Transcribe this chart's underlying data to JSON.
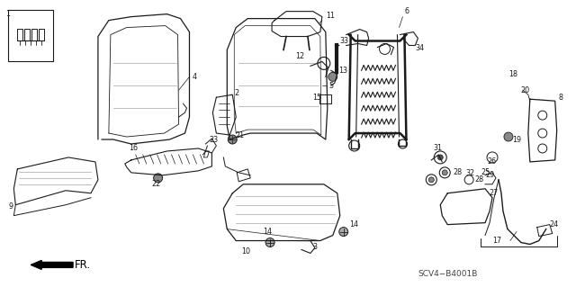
{
  "bg_color": "#ffffff",
  "line_color": "#1a1a1a",
  "text_color": "#1a1a1a",
  "fig_width": 6.4,
  "fig_height": 3.19,
  "diagram_code": "SCV4−B4001B",
  "fr_label": "FR.",
  "label_fontsize": 5.8
}
